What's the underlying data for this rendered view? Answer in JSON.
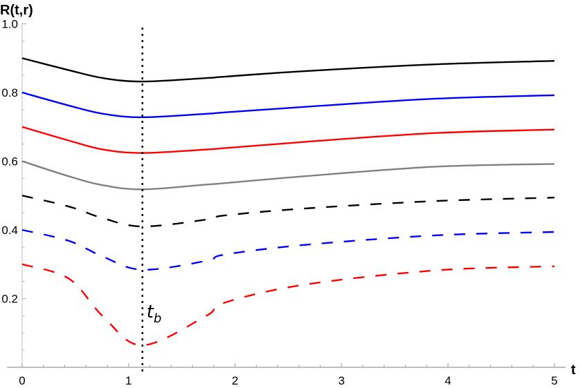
{
  "chart_data": {
    "type": "line",
    "title": "",
    "xlabel": "t",
    "ylabel": "R(t,r)",
    "xlim": [
      0,
      5
    ],
    "ylim": [
      0,
      1.0
    ],
    "x_ticks": [
      "0",
      "1",
      "2",
      "3",
      "4",
      "5"
    ],
    "y_ticks": [
      "0.2",
      "0.4",
      "0.6",
      "0.8",
      "1.0"
    ],
    "grid": false,
    "legend": "none",
    "annotations": [
      {
        "text": "t",
        "subscript": "b",
        "type": "vertical-dotted-line",
        "x": 1.13
      }
    ],
    "x": [
      0,
      0.44,
      0.76,
      1.13,
      1.73,
      1.9,
      2.64,
      3.88,
      5.0
    ],
    "series": [
      {
        "name": "solid-black",
        "color": "#000000",
        "style": "solid",
        "values": [
          0.9,
          0.865,
          0.842,
          0.832,
          0.842,
          0.846,
          0.862,
          0.882,
          0.892
        ]
      },
      {
        "name": "solid-blue",
        "color": "#0000ff",
        "style": "solid",
        "values": [
          0.8,
          0.762,
          0.738,
          0.728,
          0.738,
          0.742,
          0.758,
          0.782,
          0.792
        ]
      },
      {
        "name": "solid-red",
        "color": "#ff0000",
        "style": "solid",
        "values": [
          0.7,
          0.66,
          0.634,
          0.624,
          0.634,
          0.638,
          0.656,
          0.682,
          0.692
        ]
      },
      {
        "name": "solid-gray",
        "color": "#808080",
        "style": "solid",
        "values": [
          0.6,
          0.556,
          0.53,
          0.518,
          0.532,
          0.536,
          0.556,
          0.584,
          0.592
        ]
      },
      {
        "name": "dashed-black",
        "color": "#000000",
        "style": "dashed",
        "values": [
          0.5,
          0.468,
          0.434,
          0.41,
          0.43,
          0.442,
          0.462,
          0.484,
          0.494
        ]
      },
      {
        "name": "dashed-blue",
        "color": "#0000ff",
        "style": "dashed",
        "values": [
          0.4,
          0.368,
          0.322,
          0.284,
          0.31,
          0.328,
          0.356,
          0.384,
          0.394
        ]
      },
      {
        "name": "dashed-red",
        "color": "#ff0000",
        "style": "dashed",
        "values": [
          0.3,
          0.258,
          0.148,
          0.064,
          0.15,
          0.188,
          0.24,
          0.282,
          0.294
        ]
      }
    ]
  },
  "labels": {
    "ylabel": "R(t,r)",
    "xlabel": "t",
    "tb_main": "t",
    "tb_sub": "b"
  }
}
